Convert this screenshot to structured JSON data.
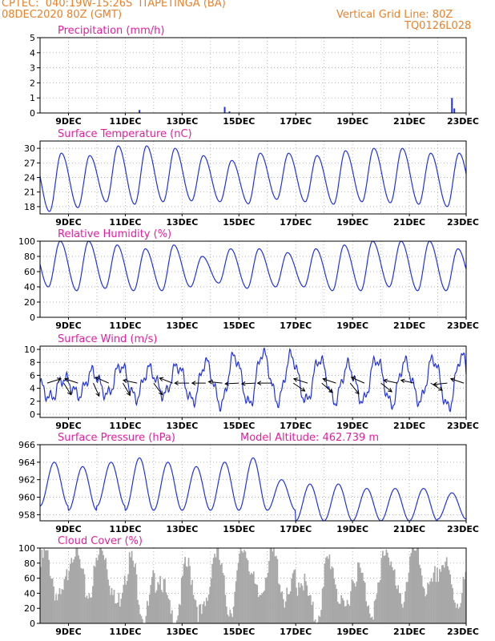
{
  "header": {
    "line1": "CPTEC:  040:19W-15:26S  ITAPETINGA (BA)",
    "line2": "08DEC2020 80Z (GMT)",
    "grid_note": "Vertical Grid Line: 80Z",
    "code": "TQ0126L028"
  },
  "colors": {
    "header": "#e8822b",
    "title": "#e020a0",
    "line": "#2233dd",
    "cloud": "#a8a8a8"
  },
  "x_ticks": [
    "9DEC",
    "11DEC",
    "13DEC",
    "15DEC",
    "17DEC",
    "19DEC",
    "21DEC",
    "23DEC"
  ],
  "chart_data": [
    {
      "type": "bar",
      "title": "Precipitation (mm/h)",
      "ylim": [
        0,
        5
      ],
      "yticks": [
        "0",
        "1",
        "2",
        "3",
        "4",
        "5"
      ],
      "grid": true,
      "x_unit": "hours since 08DEC 12Z",
      "events": [
        {
          "t": 84,
          "v": 0.2
        },
        {
          "t": 156,
          "v": 0.4
        },
        {
          "t": 160,
          "v": 0.1
        },
        {
          "t": 348,
          "v": 1.0
        },
        {
          "t": 350,
          "v": 0.3
        }
      ]
    },
    {
      "type": "line",
      "title": "Surface Temperature (nC)",
      "ylim": [
        16.5,
        31.5
      ],
      "yticks": [
        "18",
        "21",
        "24",
        "27",
        "30"
      ],
      "yvals": [
        18,
        21,
        24,
        27,
        30
      ],
      "grid": true,
      "min_series": [
        17.0,
        17.8,
        19.0,
        18.5,
        19.0,
        19.2,
        19.0,
        18.6,
        19.5,
        19.0,
        18.5,
        19.0,
        18.8,
        18.5,
        18.0
      ],
      "max_series": [
        29.0,
        28.5,
        30.5,
        30.5,
        30.0,
        28.5,
        27.5,
        29.0,
        29.0,
        28.5,
        29.5,
        30.0,
        30.0,
        29.0,
        29.0
      ]
    },
    {
      "type": "line",
      "title": "Relative Humidity (%)",
      "ylim": [
        0,
        100
      ],
      "yticks": [
        "0",
        "20",
        "40",
        "60",
        "80",
        "100"
      ],
      "yvals": [
        0,
        20,
        40,
        60,
        80,
        100
      ],
      "grid": true,
      "min_series": [
        40,
        35,
        38,
        35,
        35,
        40,
        45,
        38,
        40,
        40,
        35,
        35,
        40,
        35,
        35
      ],
      "max_series": [
        100,
        100,
        95,
        90,
        95,
        80,
        90,
        90,
        85,
        90,
        95,
        100,
        100,
        100,
        90
      ]
    },
    {
      "type": "line",
      "title": "Surface Wind (m/s)",
      "ylim": [
        -0.5,
        10.5
      ],
      "yticks": [
        "0",
        "2",
        "4",
        "6",
        "8",
        "10"
      ],
      "yvals": [
        0,
        2,
        4,
        6,
        8,
        10
      ],
      "grid": true,
      "min_series": [
        2.5,
        3.0,
        3.0,
        2.5,
        3.0,
        2.0,
        1.5,
        1.5,
        2.0,
        2.0,
        2.0,
        2.0,
        1.5,
        2.0,
        1.0
      ],
      "max_series": [
        5.5,
        6.5,
        7.5,
        7.0,
        7.5,
        8.0,
        9.0,
        9.5,
        9.0,
        8.5,
        7.5,
        8.5,
        8.0,
        8.5,
        9.0
      ],
      "arrows": [
        {
          "t": 6,
          "dx": 0.95,
          "dy": -0.3
        },
        {
          "t": 20,
          "dx": 0.5,
          "dy": 0.8
        },
        {
          "t": 32,
          "dx": -0.9,
          "dy": -0.3
        },
        {
          "t": 45,
          "dx": 0.4,
          "dy": 0.9
        },
        {
          "t": 58,
          "dx": -0.9,
          "dy": -0.4
        },
        {
          "t": 70,
          "dx": 0.5,
          "dy": 0.85
        },
        {
          "t": 82,
          "dx": -0.95,
          "dy": -0.2
        },
        {
          "t": 96,
          "dx": 0.6,
          "dy": 0.8
        },
        {
          "t": 112,
          "dx": -0.9,
          "dy": -0.35
        },
        {
          "t": 126,
          "dx": -1.0,
          "dy": 0.0
        },
        {
          "t": 140,
          "dx": -0.95,
          "dy": 0.0
        },
        {
          "t": 154,
          "dx": -0.95,
          "dy": -0.1
        },
        {
          "t": 168,
          "dx": -0.95,
          "dy": 0.05
        },
        {
          "t": 182,
          "dx": -0.95,
          "dy": 0.05
        },
        {
          "t": 196,
          "dx": -1.0,
          "dy": 0.0
        },
        {
          "t": 214,
          "dx": 0.8,
          "dy": 0.55
        },
        {
          "t": 226,
          "dx": -0.95,
          "dy": -0.3
        },
        {
          "t": 238,
          "dx": 0.75,
          "dy": 0.65
        },
        {
          "t": 250,
          "dx": -0.9,
          "dy": -0.3
        },
        {
          "t": 262,
          "dx": 0.6,
          "dy": 0.75
        },
        {
          "t": 274,
          "dx": -0.9,
          "dy": -0.4
        },
        {
          "t": 288,
          "dx": 0.75,
          "dy": 0.6
        },
        {
          "t": 302,
          "dx": -0.95,
          "dy": -0.2
        },
        {
          "t": 316,
          "dx": -0.9,
          "dy": -0.2
        },
        {
          "t": 330,
          "dx": 0.8,
          "dy": 0.5
        },
        {
          "t": 344,
          "dx": -0.95,
          "dy": 0.1
        },
        {
          "t": 358,
          "dx": -0.9,
          "dy": -0.3
        }
      ]
    },
    {
      "type": "line",
      "title": "Surface Pressure (hPa)",
      "annotation": "Model Altitude: 462.739  m",
      "ylim": [
        957.3,
        966
      ],
      "yticks": [
        "958",
        "960",
        "962",
        "964",
        "966"
      ],
      "yvals": [
        958,
        960,
        962,
        964,
        966
      ],
      "grid": true,
      "min_series": [
        959.0,
        958.5,
        959.0,
        958.5,
        958.5,
        958.5,
        958.5,
        958.5,
        958.5,
        957.3,
        957.3,
        957.3,
        957.3,
        957.3,
        957.5
      ],
      "max_series": [
        964.0,
        963.5,
        964.0,
        964.5,
        964.0,
        963.5,
        964.0,
        964.5,
        962.0,
        961.5,
        961.5,
        961.0,
        961.0,
        961.0,
        960.5
      ]
    },
    {
      "type": "bar",
      "title": "Cloud Cover (%)",
      "ylim": [
        0,
        100
      ],
      "yticks": [
        "0",
        "20",
        "40",
        "60",
        "80",
        "100"
      ],
      "yvals": [
        0,
        20,
        40,
        60,
        80,
        100
      ],
      "grid": true,
      "daily_max": [
        90,
        100,
        100,
        85,
        65,
        75,
        95,
        100,
        90,
        60,
        85,
        70,
        100,
        95,
        80
      ],
      "daily_min": [
        30,
        40,
        25,
        10,
        5,
        10,
        20,
        35,
        30,
        10,
        15,
        20,
        30,
        40,
        30
      ]
    }
  ]
}
